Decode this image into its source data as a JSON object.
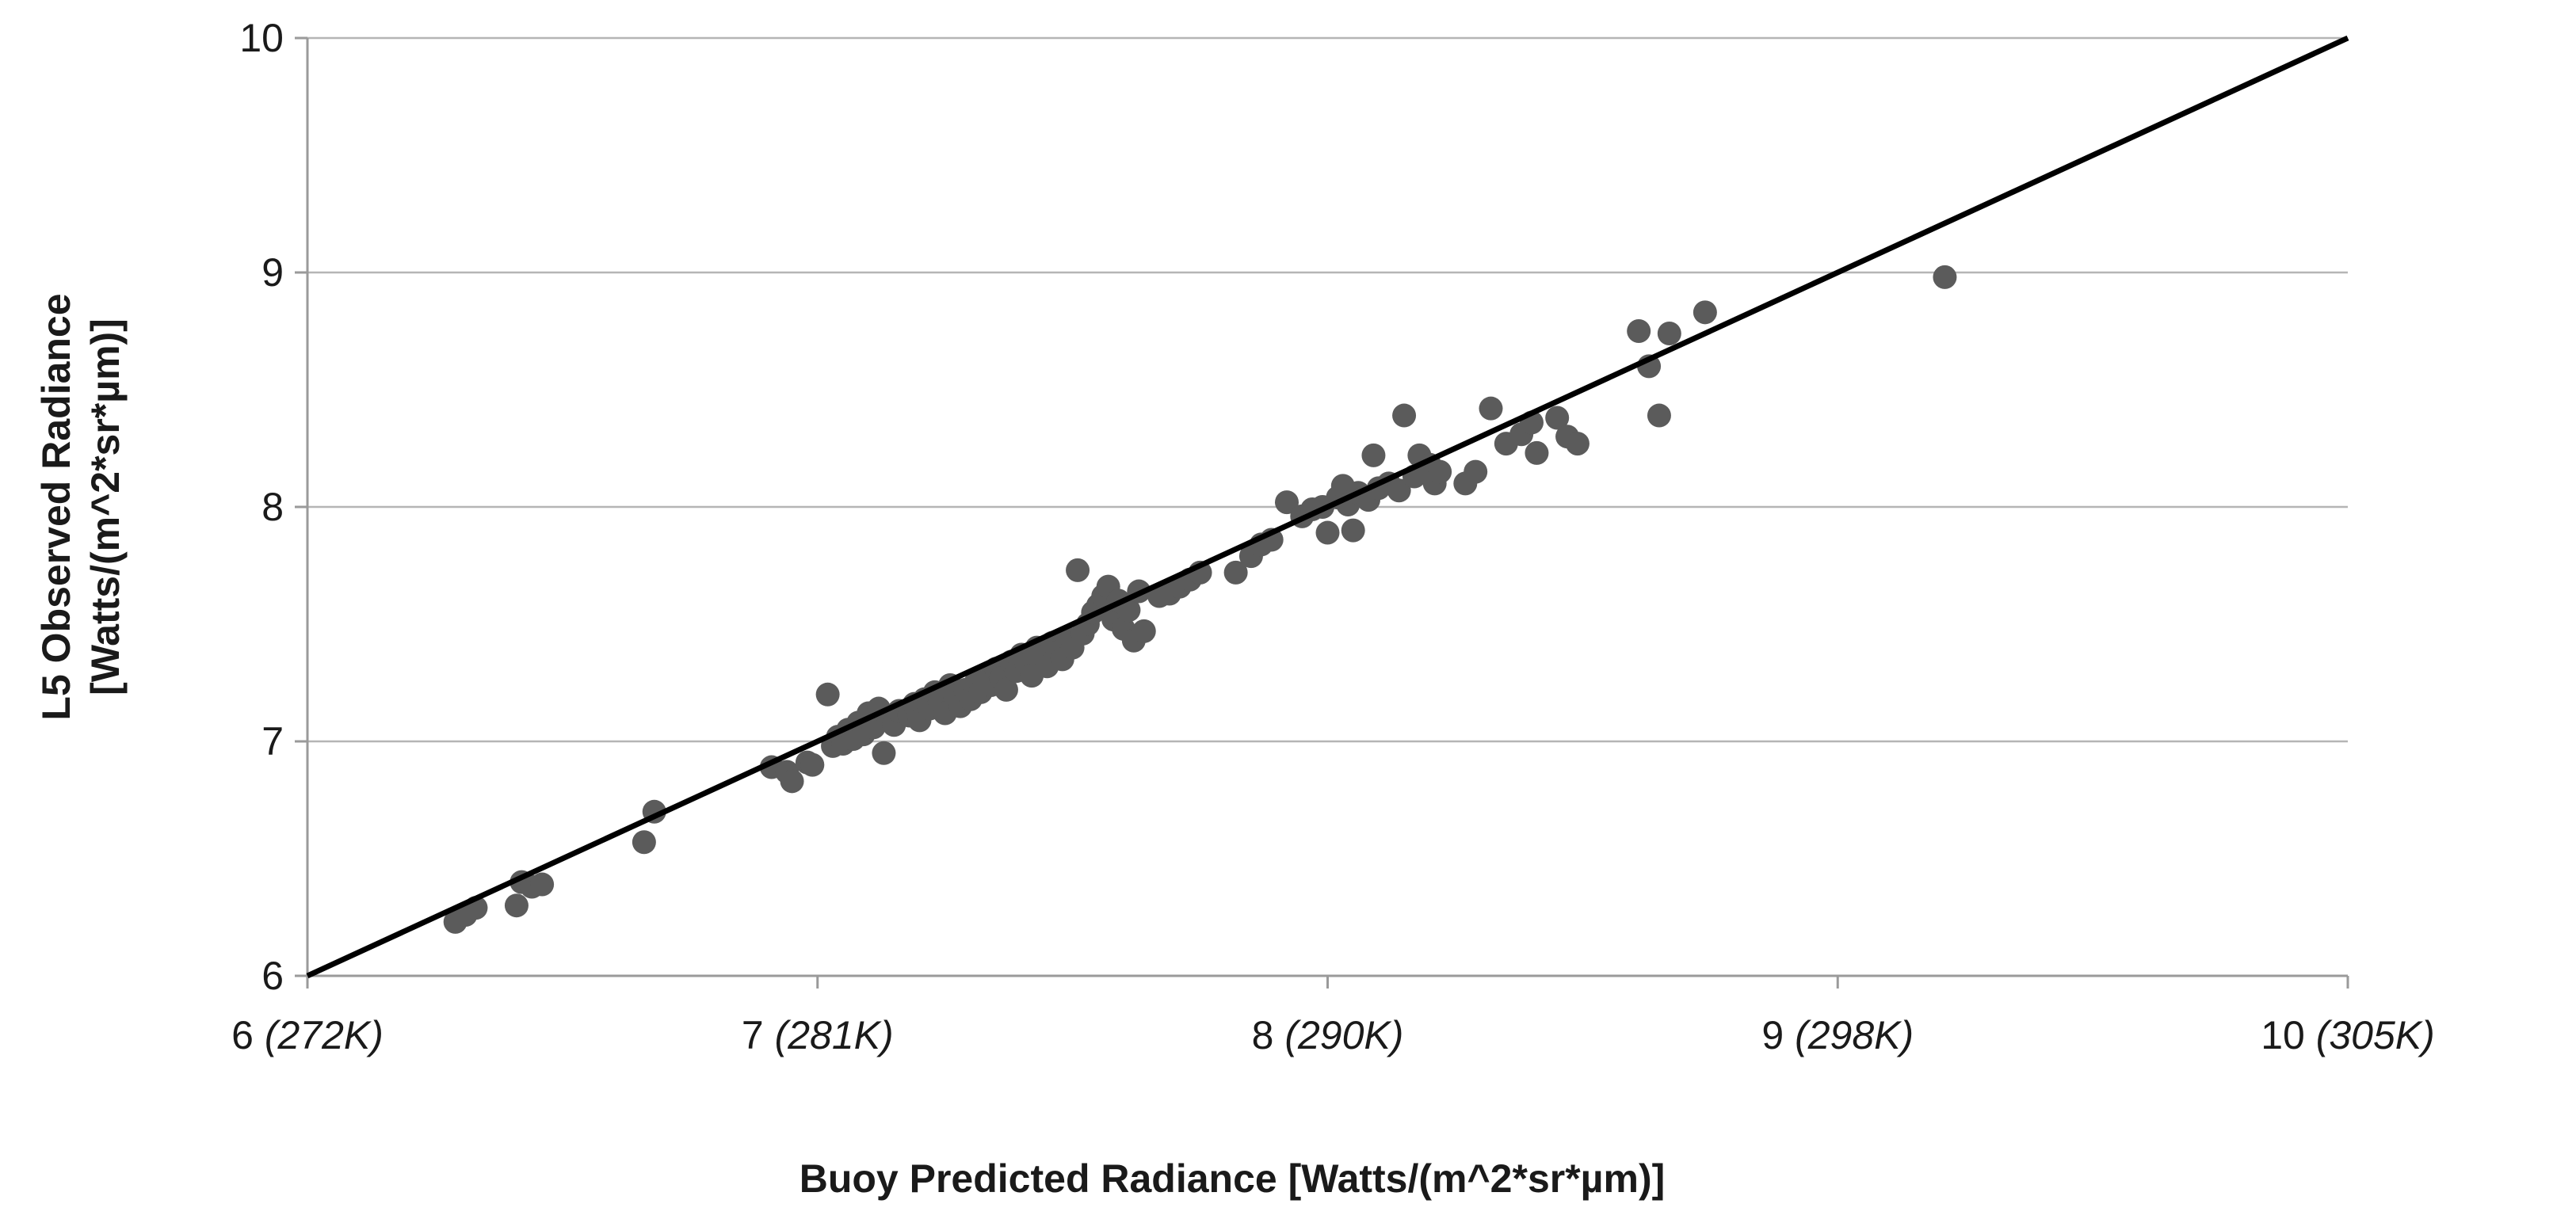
{
  "chart_data": {
    "type": "scatter",
    "xlabel": "Buoy Predicted Radiance [Watts/(m^2*sr*µm)]",
    "ylabel_lines": [
      "L5 Observed Radiance",
      "[Watts/(m^2*sr*µm)]"
    ],
    "xlim": [
      6,
      10
    ],
    "ylim": [
      6,
      10
    ],
    "grid": true,
    "x_ticks": [
      {
        "value": 6,
        "label": "6",
        "temp": "(272K)"
      },
      {
        "value": 7,
        "label": "7",
        "temp": "(281K)"
      },
      {
        "value": 8,
        "label": "8",
        "temp": "(290K)"
      },
      {
        "value": 9,
        "label": "9 ",
        "temp": "(298K)"
      },
      {
        "value": 10,
        "label": "10",
        "temp": "(305K)"
      }
    ],
    "y_ticks": [
      {
        "value": 6,
        "label": "6"
      },
      {
        "value": 7,
        "label": "7"
      },
      {
        "value": 8,
        "label": "8"
      },
      {
        "value": 9,
        "label": "9"
      },
      {
        "value": 10,
        "label": "10"
      }
    ],
    "reference_line": {
      "from": [
        6,
        6
      ],
      "to": [
        10,
        10
      ],
      "color": "#000000"
    },
    "point_color": "#5b5b5b",
    "points": [
      [
        6.29,
        6.23
      ],
      [
        6.31,
        6.26
      ],
      [
        6.33,
        6.29
      ],
      [
        6.41,
        6.3
      ],
      [
        6.42,
        6.4
      ],
      [
        6.44,
        6.38
      ],
      [
        6.46,
        6.39
      ],
      [
        6.66,
        6.57
      ],
      [
        6.68,
        6.7
      ],
      [
        6.91,
        6.89
      ],
      [
        6.94,
        6.87
      ],
      [
        6.95,
        6.83
      ],
      [
        6.98,
        6.91
      ],
      [
        6.99,
        6.9
      ],
      [
        7.02,
        7.2
      ],
      [
        7.03,
        6.98
      ],
      [
        7.04,
        7.02
      ],
      [
        7.05,
        6.99
      ],
      [
        7.06,
        7.05
      ],
      [
        7.07,
        7.01
      ],
      [
        7.08,
        7.08
      ],
      [
        7.09,
        7.03
      ],
      [
        7.1,
        7.12
      ],
      [
        7.11,
        7.06
      ],
      [
        7.12,
        7.14
      ],
      [
        7.13,
        6.95
      ],
      [
        7.14,
        7.1
      ],
      [
        7.15,
        7.07
      ],
      [
        7.16,
        7.13
      ],
      [
        7.18,
        7.11
      ],
      [
        7.19,
        7.16
      ],
      [
        7.2,
        7.09
      ],
      [
        7.21,
        7.18
      ],
      [
        7.22,
        7.14
      ],
      [
        7.23,
        7.21
      ],
      [
        7.24,
        7.17
      ],
      [
        7.25,
        7.12
      ],
      [
        7.26,
        7.24
      ],
      [
        7.27,
        7.19
      ],
      [
        7.28,
        7.15
      ],
      [
        7.29,
        7.22
      ],
      [
        7.3,
        7.18
      ],
      [
        7.31,
        7.25
      ],
      [
        7.32,
        7.21
      ],
      [
        7.33,
        7.28
      ],
      [
        7.34,
        7.24
      ],
      [
        7.35,
        7.31
      ],
      [
        7.36,
        7.27
      ],
      [
        7.37,
        7.22
      ],
      [
        7.38,
        7.34
      ],
      [
        7.39,
        7.3
      ],
      [
        7.4,
        7.37
      ],
      [
        7.41,
        7.33
      ],
      [
        7.42,
        7.28
      ],
      [
        7.43,
        7.4
      ],
      [
        7.44,
        7.36
      ],
      [
        7.45,
        7.32
      ],
      [
        7.46,
        7.42
      ],
      [
        7.47,
        7.38
      ],
      [
        7.48,
        7.35
      ],
      [
        7.49,
        7.44
      ],
      [
        7.5,
        7.4
      ],
      [
        7.51,
        7.73
      ],
      [
        7.52,
        7.46
      ],
      [
        7.53,
        7.5
      ],
      [
        7.54,
        7.55
      ],
      [
        7.55,
        7.58
      ],
      [
        7.56,
        7.62
      ],
      [
        7.57,
        7.66
      ],
      [
        7.58,
        7.52
      ],
      [
        7.59,
        7.6
      ],
      [
        7.6,
        7.48
      ],
      [
        7.61,
        7.56
      ],
      [
        7.62,
        7.43
      ],
      [
        7.63,
        7.64
      ],
      [
        7.64,
        7.47
      ],
      [
        7.67,
        7.62
      ],
      [
        7.69,
        7.63
      ],
      [
        7.71,
        7.66
      ],
      [
        7.73,
        7.69
      ],
      [
        7.75,
        7.72
      ],
      [
        7.82,
        7.72
      ],
      [
        7.85,
        7.79
      ],
      [
        7.87,
        7.84
      ],
      [
        7.89,
        7.86
      ],
      [
        7.92,
        8.02
      ],
      [
        7.95,
        7.96
      ],
      [
        7.97,
        7.99
      ],
      [
        7.99,
        8.0
      ],
      [
        8.0,
        7.89
      ],
      [
        8.02,
        8.04
      ],
      [
        8.03,
        8.09
      ],
      [
        8.04,
        8.01
      ],
      [
        8.05,
        7.9
      ],
      [
        8.06,
        8.06
      ],
      [
        8.08,
        8.03
      ],
      [
        8.09,
        8.22
      ],
      [
        8.1,
        8.08
      ],
      [
        8.12,
        8.1
      ],
      [
        8.14,
        8.07
      ],
      [
        8.15,
        8.39
      ],
      [
        8.17,
        8.13
      ],
      [
        8.18,
        8.22
      ],
      [
        8.2,
        8.18
      ],
      [
        8.21,
        8.1
      ],
      [
        8.22,
        8.15
      ],
      [
        8.27,
        8.1
      ],
      [
        8.29,
        8.15
      ],
      [
        8.32,
        8.42
      ],
      [
        8.35,
        8.27
      ],
      [
        8.38,
        8.31
      ],
      [
        8.4,
        8.36
      ],
      [
        8.41,
        8.23
      ],
      [
        8.45,
        8.38
      ],
      [
        8.47,
        8.3
      ],
      [
        8.49,
        8.27
      ],
      [
        8.61,
        8.75
      ],
      [
        8.63,
        8.6
      ],
      [
        8.65,
        8.39
      ],
      [
        8.67,
        8.74
      ],
      [
        8.74,
        8.83
      ],
      [
        9.21,
        8.98
      ]
    ]
  }
}
